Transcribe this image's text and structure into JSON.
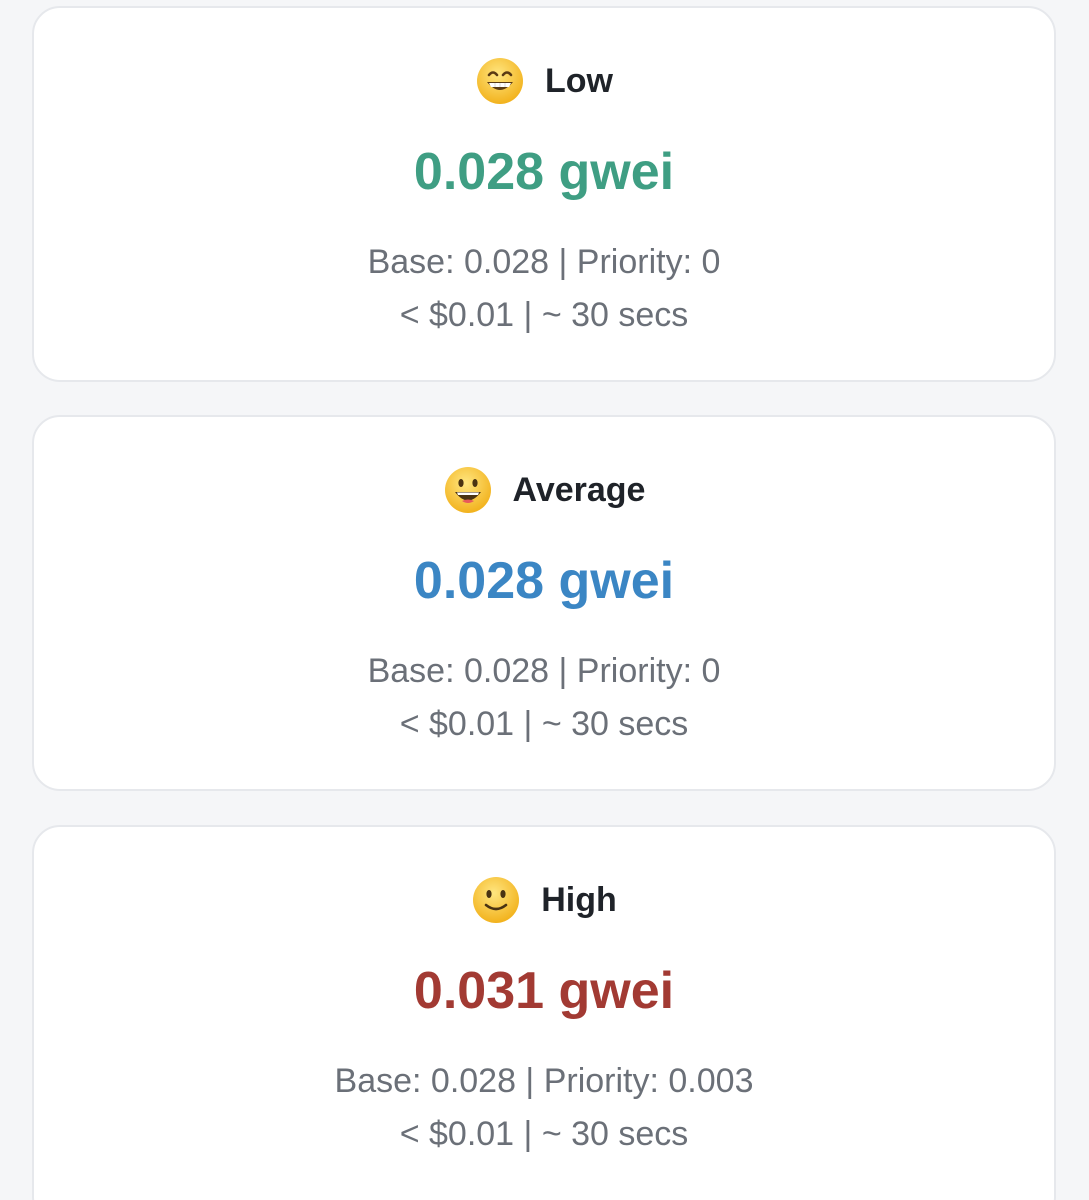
{
  "colors": {
    "low": "#3f9e83",
    "average": "#3b86c4",
    "high": "#a23a33"
  },
  "tiers": [
    {
      "emoji": "grinning-face-with-smiling-eyes-icon",
      "label": "Low",
      "price": "0.028 gwei",
      "breakdown": "Base: 0.028 | Priority: 0",
      "cost_time": "< $0.01 | ~ 30 secs"
    },
    {
      "emoji": "grinning-face-with-big-eyes-icon",
      "label": "Average",
      "price": "0.028 gwei",
      "breakdown": "Base: 0.028 | Priority: 0",
      "cost_time": "< $0.01 | ~ 30 secs"
    },
    {
      "emoji": "slightly-smiling-face-icon",
      "label": "High",
      "price": "0.031 gwei",
      "breakdown": "Base: 0.028 | Priority: 0.003",
      "cost_time": "< $0.01 | ~ 30 secs"
    }
  ]
}
